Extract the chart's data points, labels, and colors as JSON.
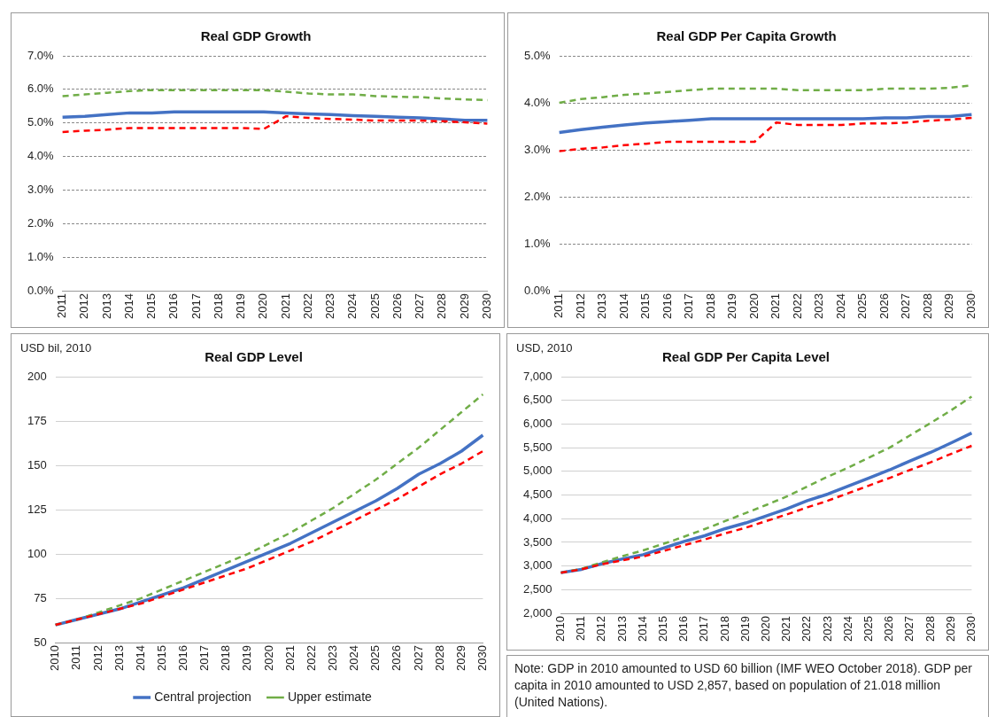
{
  "chart_data": [
    {
      "type": "line",
      "title": "Real GDP Growth",
      "categories": [
        "2011",
        "2012",
        "2013",
        "2014",
        "2015",
        "2016",
        "2017",
        "2018",
        "2019",
        "2020",
        "2021",
        "2022",
        "2023",
        "2024",
        "2025",
        "2026",
        "2027",
        "2028",
        "2029",
        "2030"
      ],
      "series": [
        {
          "color": "#4472c4",
          "line_style": "solid",
          "values": [
            5.17,
            5.2,
            5.25,
            5.3,
            5.3,
            5.33,
            5.33,
            5.33,
            5.33,
            5.33,
            5.3,
            5.27,
            5.25,
            5.22,
            5.2,
            5.17,
            5.15,
            5.12,
            5.08,
            5.08
          ]
        },
        {
          "color": "#70ad47",
          "line_style": "dashed",
          "values": [
            5.8,
            5.85,
            5.9,
            5.95,
            5.98,
            5.98,
            5.98,
            5.98,
            5.98,
            5.98,
            5.93,
            5.88,
            5.85,
            5.85,
            5.8,
            5.78,
            5.77,
            5.73,
            5.7,
            5.68
          ]
        },
        {
          "color": "#ff0000",
          "line_style": "dashed",
          "values": [
            4.73,
            4.77,
            4.8,
            4.85,
            4.85,
            4.85,
            4.85,
            4.85,
            4.85,
            4.82,
            5.2,
            5.15,
            5.12,
            5.1,
            5.07,
            5.07,
            5.07,
            5.05,
            5.02,
            4.98
          ]
        }
      ],
      "ylim": [
        0,
        7
      ],
      "yticks": [
        {
          "value": 0,
          "label": "0.0%"
        },
        {
          "value": 1,
          "label": "1.0%"
        },
        {
          "value": 2,
          "label": "2.0%"
        },
        {
          "value": 3,
          "label": "3.0%"
        },
        {
          "value": 4,
          "label": "4.0%"
        },
        {
          "value": 5,
          "label": "5.0%"
        },
        {
          "value": 6,
          "label": "6.0%"
        },
        {
          "value": 7,
          "label": "7.0%"
        }
      ],
      "grid": "y",
      "legend": false,
      "marker": "none"
    },
    {
      "type": "line",
      "title": "Real GDP Per Capita Growth",
      "categories": [
        "2011",
        "2012",
        "2013",
        "2014",
        "2015",
        "2016",
        "2017",
        "2018",
        "2019",
        "2020",
        "2021",
        "2022",
        "2023",
        "2024",
        "2025",
        "2026",
        "2027",
        "2028",
        "2029",
        "2030"
      ],
      "series": [
        {
          "color": "#4472c4",
          "line_style": "solid",
          "values": [
            3.37,
            3.43,
            3.48,
            3.53,
            3.57,
            3.6,
            3.63,
            3.66,
            3.66,
            3.66,
            3.66,
            3.66,
            3.66,
            3.66,
            3.66,
            3.68,
            3.68,
            3.71,
            3.71,
            3.75
          ]
        },
        {
          "color": "#70ad47",
          "line_style": "dashed",
          "values": [
            4.0,
            4.08,
            4.12,
            4.17,
            4.2,
            4.23,
            4.27,
            4.3,
            4.3,
            4.3,
            4.3,
            4.27,
            4.27,
            4.27,
            4.27,
            4.3,
            4.3,
            4.3,
            4.32,
            4.37
          ]
        },
        {
          "color": "#ff0000",
          "line_style": "dashed",
          "values": [
            2.97,
            3.02,
            3.05,
            3.1,
            3.13,
            3.17,
            3.17,
            3.17,
            3.17,
            3.17,
            3.58,
            3.53,
            3.53,
            3.53,
            3.56,
            3.56,
            3.58,
            3.62,
            3.64,
            3.68
          ]
        }
      ],
      "ylim": [
        0,
        5
      ],
      "yticks": [
        {
          "value": 0,
          "label": "0.0%"
        },
        {
          "value": 1,
          "label": "1.0%"
        },
        {
          "value": 2,
          "label": "2.0%"
        },
        {
          "value": 3,
          "label": "3.0%"
        },
        {
          "value": 4,
          "label": "4.0%"
        },
        {
          "value": 5,
          "label": "5.0%"
        }
      ],
      "grid": "y",
      "legend": false,
      "marker": "none"
    },
    {
      "type": "line",
      "title": "Real GDP Level",
      "ylabel": "USD bil, 2010",
      "categories": [
        "2010",
        "2011",
        "2012",
        "2013",
        "2014",
        "2015",
        "2016",
        "2017",
        "2018",
        "2019",
        "2020",
        "2021",
        "2022",
        "2023",
        "2024",
        "2025",
        "2026",
        "2027",
        "2028",
        "2029",
        "2030"
      ],
      "series": [
        {
          "name": "Central projection",
          "color": "#4472c4",
          "line_style": "solid",
          "values": [
            60,
            63,
            66,
            69,
            73,
            77,
            81,
            86,
            91,
            96,
            101,
            106,
            112,
            118,
            124,
            130,
            137,
            145,
            151,
            158,
            167
          ]
        },
        {
          "name": "Upper estimate",
          "color": "#70ad47",
          "line_style": "dashed",
          "values": [
            60,
            63,
            67,
            71,
            75,
            80,
            85,
            90,
            95,
            100,
            106,
            112,
            119,
            126,
            134,
            142,
            151,
            160,
            170,
            180,
            190
          ]
        },
        {
          "color": "#ff0000",
          "line_style": "dashed",
          "values": [
            60,
            63,
            66,
            69,
            72,
            76,
            80,
            84,
            88,
            92,
            97,
            102,
            107,
            113,
            119,
            125,
            131,
            138,
            145,
            151,
            158
          ]
        }
      ],
      "ylim": [
        50,
        200
      ],
      "yticks": [
        50,
        75,
        100,
        125,
        150,
        175,
        200
      ],
      "grid": "y",
      "legend": "bottom",
      "marker": "none"
    },
    {
      "type": "line",
      "title": "Real GDP Per Capita Level",
      "ylabel": "USD, 2010",
      "categories": [
        "2010",
        "2011",
        "2012",
        "2013",
        "2014",
        "2015",
        "2016",
        "2017",
        "2018",
        "2019",
        "2020",
        "2021",
        "2022",
        "2023",
        "2024",
        "2025",
        "2026",
        "2027",
        "2028",
        "2029",
        "2030"
      ],
      "series": [
        {
          "color": "#4472c4",
          "line_style": "solid",
          "values": [
            2860,
            2930,
            3050,
            3150,
            3240,
            3380,
            3520,
            3640,
            3790,
            3910,
            4060,
            4210,
            4380,
            4520,
            4690,
            4860,
            5030,
            5220,
            5400,
            5600,
            5810
          ]
        },
        {
          "color": "#70ad47",
          "line_style": "dashed",
          "values": [
            2860,
            2940,
            3080,
            3210,
            3330,
            3470,
            3620,
            3780,
            3950,
            4120,
            4290,
            4470,
            4680,
            4890,
            5080,
            5290,
            5500,
            5760,
            6020,
            6290,
            6580
          ]
        },
        {
          "color": "#ff0000",
          "line_style": "dashed",
          "values": [
            2860,
            2930,
            3040,
            3120,
            3200,
            3320,
            3440,
            3560,
            3690,
            3810,
            3950,
            4090,
            4240,
            4380,
            4540,
            4700,
            4860,
            5030,
            5190,
            5370,
            5540
          ]
        }
      ],
      "ylim": [
        2000,
        7000
      ],
      "yticks": [
        {
          "value": 2000,
          "label": "2,000"
        },
        {
          "value": 2500,
          "label": "2,500"
        },
        {
          "value": 3000,
          "label": "3,000"
        },
        {
          "value": 3500,
          "label": "3,500"
        },
        {
          "value": 4000,
          "label": "4,000"
        },
        {
          "value": 4500,
          "label": "4,500"
        },
        {
          "value": 5000,
          "label": "5,000"
        },
        {
          "value": 5500,
          "label": "5,500"
        },
        {
          "value": 6000,
          "label": "6,000"
        },
        {
          "value": 6500,
          "label": "6,500"
        },
        {
          "value": 7000,
          "label": "7,000"
        }
      ],
      "grid": "y",
      "legend": false,
      "marker": "none",
      "annotations": [
        "Note: GDP in 2010 amounted to USD 60 billion (IMF WEO October 2018). GDP per capita in 2010 amounted to USD 2,857, based on population of 21.018 million (United Nations)."
      ]
    }
  ]
}
